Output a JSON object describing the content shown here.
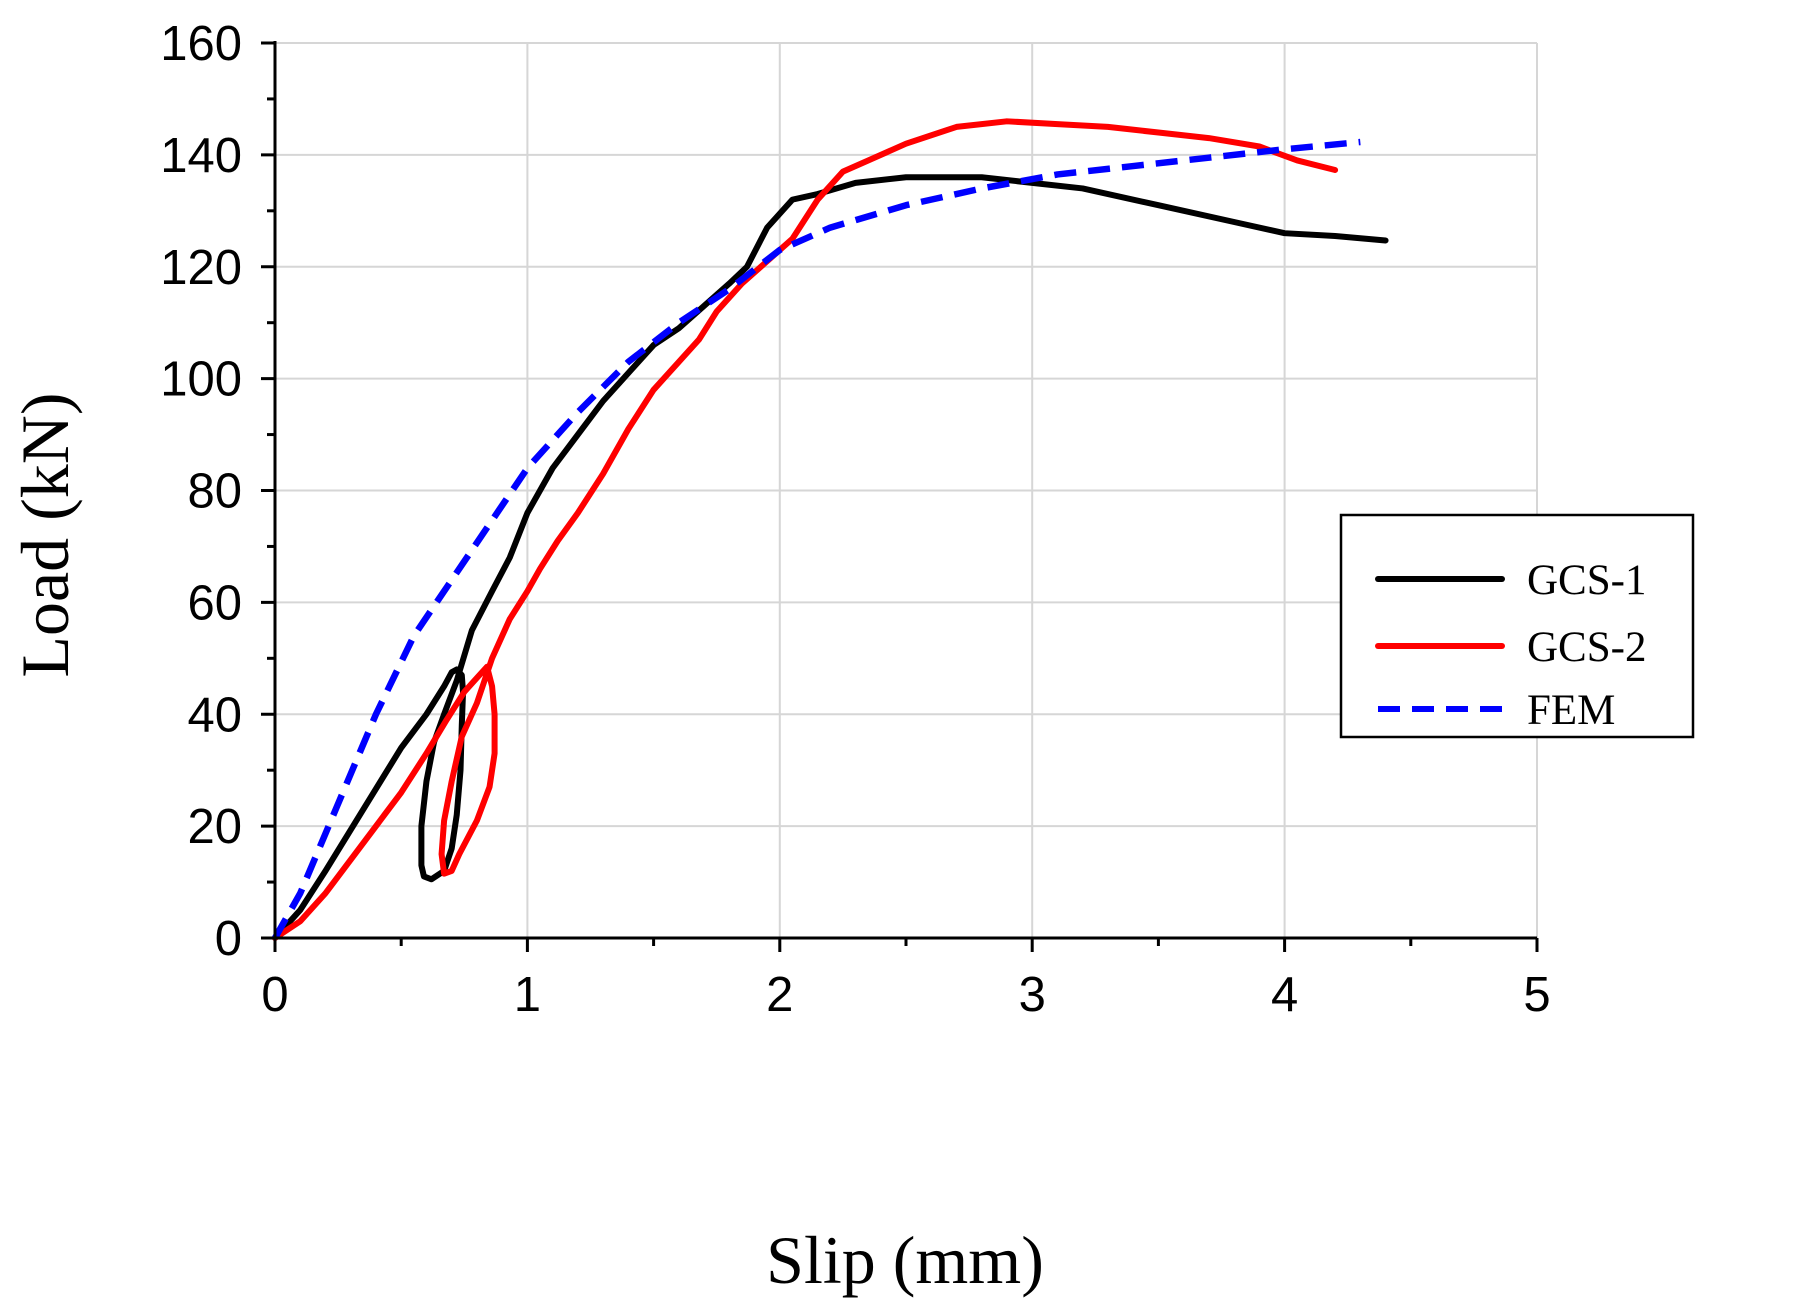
{
  "chart_data": {
    "type": "line",
    "title": "",
    "xlabel": "Slip (mm)",
    "ylabel": "Load (kN)",
    "xlim": [
      0,
      5
    ],
    "ylim": [
      0,
      160
    ],
    "xticks": [
      "0",
      "1",
      "2",
      "3",
      "4",
      "5"
    ],
    "yticks": [
      "0",
      "20",
      "40",
      "60",
      "80",
      "100",
      "120",
      "140",
      "160"
    ],
    "grid": true,
    "legend_position": "right-middle",
    "series": [
      {
        "name": "GCS-1",
        "color": "#000000",
        "style": "solid",
        "points": [
          [
            0,
            0
          ],
          [
            0.1,
            5
          ],
          [
            0.2,
            12
          ],
          [
            0.35,
            23
          ],
          [
            0.5,
            34
          ],
          [
            0.6,
            40
          ],
          [
            0.67,
            45
          ],
          [
            0.7,
            47.5
          ],
          [
            0.72,
            48
          ],
          [
            0.74,
            47
          ],
          [
            0.745,
            44
          ],
          [
            0.74,
            38
          ],
          [
            0.735,
            30
          ],
          [
            0.72,
            22
          ],
          [
            0.7,
            16
          ],
          [
            0.67,
            12
          ],
          [
            0.62,
            10.5
          ],
          [
            0.59,
            11
          ],
          [
            0.58,
            13
          ],
          [
            0.58,
            20
          ],
          [
            0.6,
            28
          ],
          [
            0.63,
            35
          ],
          [
            0.67,
            40
          ],
          [
            0.72,
            46
          ],
          [
            0.78,
            55
          ],
          [
            0.86,
            62
          ],
          [
            0.93,
            68
          ],
          [
            1.0,
            76
          ],
          [
            1.1,
            84
          ],
          [
            1.2,
            90
          ],
          [
            1.3,
            96
          ],
          [
            1.4,
            101
          ],
          [
            1.5,
            106
          ],
          [
            1.6,
            109
          ],
          [
            1.7,
            113
          ],
          [
            1.8,
            117
          ],
          [
            1.87,
            120
          ],
          [
            1.95,
            127
          ],
          [
            2.05,
            132
          ],
          [
            2.15,
            133
          ],
          [
            2.3,
            135
          ],
          [
            2.5,
            136
          ],
          [
            2.8,
            136
          ],
          [
            3.0,
            135
          ],
          [
            3.2,
            134
          ],
          [
            3.5,
            131
          ],
          [
            3.8,
            128
          ],
          [
            4.0,
            126
          ],
          [
            4.2,
            125.5
          ],
          [
            4.4,
            124.7
          ]
        ]
      },
      {
        "name": "GCS-2",
        "color": "#ff0000",
        "style": "solid",
        "points": [
          [
            0,
            0
          ],
          [
            0.1,
            3
          ],
          [
            0.2,
            8
          ],
          [
            0.35,
            17
          ],
          [
            0.5,
            26
          ],
          [
            0.6,
            33
          ],
          [
            0.68,
            39
          ],
          [
            0.75,
            44
          ],
          [
            0.8,
            46.5
          ],
          [
            0.84,
            48.5
          ],
          [
            0.86,
            45
          ],
          [
            0.87,
            40
          ],
          [
            0.87,
            33
          ],
          [
            0.85,
            27
          ],
          [
            0.8,
            21
          ],
          [
            0.73,
            15
          ],
          [
            0.7,
            12
          ],
          [
            0.67,
            11.5
          ],
          [
            0.66,
            15
          ],
          [
            0.67,
            21
          ],
          [
            0.7,
            28
          ],
          [
            0.74,
            36
          ],
          [
            0.8,
            42
          ],
          [
            0.86,
            50
          ],
          [
            0.93,
            57
          ],
          [
            1.0,
            62
          ],
          [
            1.05,
            66
          ],
          [
            1.12,
            71
          ],
          [
            1.2,
            76
          ],
          [
            1.3,
            83
          ],
          [
            1.4,
            91
          ],
          [
            1.5,
            98
          ],
          [
            1.6,
            103
          ],
          [
            1.68,
            107
          ],
          [
            1.75,
            112
          ],
          [
            1.85,
            117
          ],
          [
            1.95,
            121
          ],
          [
            2.05,
            125
          ],
          [
            2.15,
            132
          ],
          [
            2.25,
            137
          ],
          [
            2.35,
            139
          ],
          [
            2.5,
            142
          ],
          [
            2.7,
            145
          ],
          [
            2.9,
            146
          ],
          [
            3.1,
            145.5
          ],
          [
            3.3,
            145
          ],
          [
            3.5,
            144
          ],
          [
            3.7,
            143
          ],
          [
            3.9,
            141.5
          ],
          [
            4.05,
            139
          ],
          [
            4.2,
            137.3
          ]
        ]
      },
      {
        "name": "FEM",
        "color": "#0000ff",
        "style": "dashed",
        "points": [
          [
            0,
            0
          ],
          [
            0.1,
            8
          ],
          [
            0.25,
            24
          ],
          [
            0.4,
            40
          ],
          [
            0.55,
            54
          ],
          [
            0.7,
            64
          ],
          [
            0.85,
            74
          ],
          [
            1.0,
            84
          ],
          [
            1.2,
            94
          ],
          [
            1.4,
            103
          ],
          [
            1.6,
            110
          ],
          [
            1.8,
            116
          ],
          [
            2.0,
            123
          ],
          [
            2.2,
            127
          ],
          [
            2.5,
            131
          ],
          [
            2.8,
            134
          ],
          [
            3.1,
            136.5
          ],
          [
            3.4,
            138
          ],
          [
            3.7,
            139.5
          ],
          [
            4.0,
            141
          ],
          [
            4.3,
            142.3
          ]
        ]
      }
    ]
  }
}
